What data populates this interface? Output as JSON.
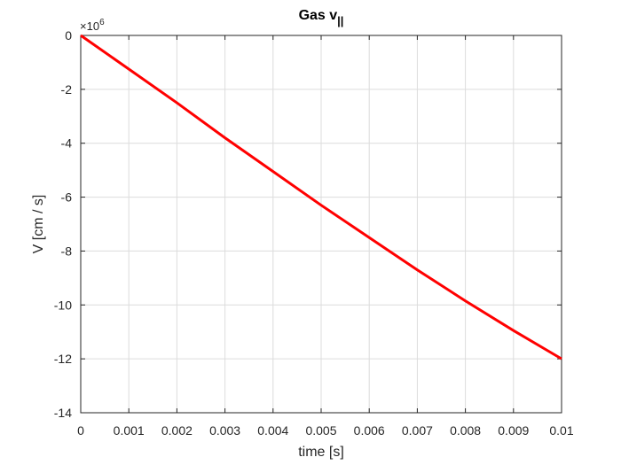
{
  "chart_data": {
    "type": "line",
    "title": "Gas v",
    "title_subscript": "||",
    "xlabel": "time [s]",
    "ylabel": "V [cm / s]",
    "y_multiplier_base": "×10",
    "y_multiplier_exponent": "6",
    "xlim": [
      0,
      0.01
    ],
    "ylim": [
      -14,
      0
    ],
    "y_scale_factor": 1000000,
    "x_ticks": [
      0,
      0.001,
      0.002,
      0.003,
      0.004,
      0.005,
      0.006,
      0.007,
      0.008,
      0.009,
      0.01
    ],
    "x_tick_labels": [
      "0",
      "0.001",
      "0.002",
      "0.003",
      "0.004",
      "0.005",
      "0.006",
      "0.007",
      "0.008",
      "0.009",
      "0.01"
    ],
    "y_ticks": [
      0,
      -2,
      -4,
      -6,
      -8,
      -10,
      -12,
      -14
    ],
    "y_tick_labels": [
      "0",
      "-2",
      "-4",
      "-6",
      "-8",
      "-10",
      "-12",
      "-14"
    ],
    "grid": true,
    "series": [
      {
        "color": "#ff0000",
        "x": [
          0,
          0.001,
          0.002,
          0.003,
          0.004,
          0.005,
          0.006,
          0.007,
          0.008,
          0.009,
          0.01
        ],
        "y": [
          0,
          -1.25,
          -2.5,
          -3.8,
          -5.05,
          -6.3,
          -7.5,
          -8.7,
          -9.85,
          -10.95,
          -12.0
        ]
      }
    ]
  }
}
